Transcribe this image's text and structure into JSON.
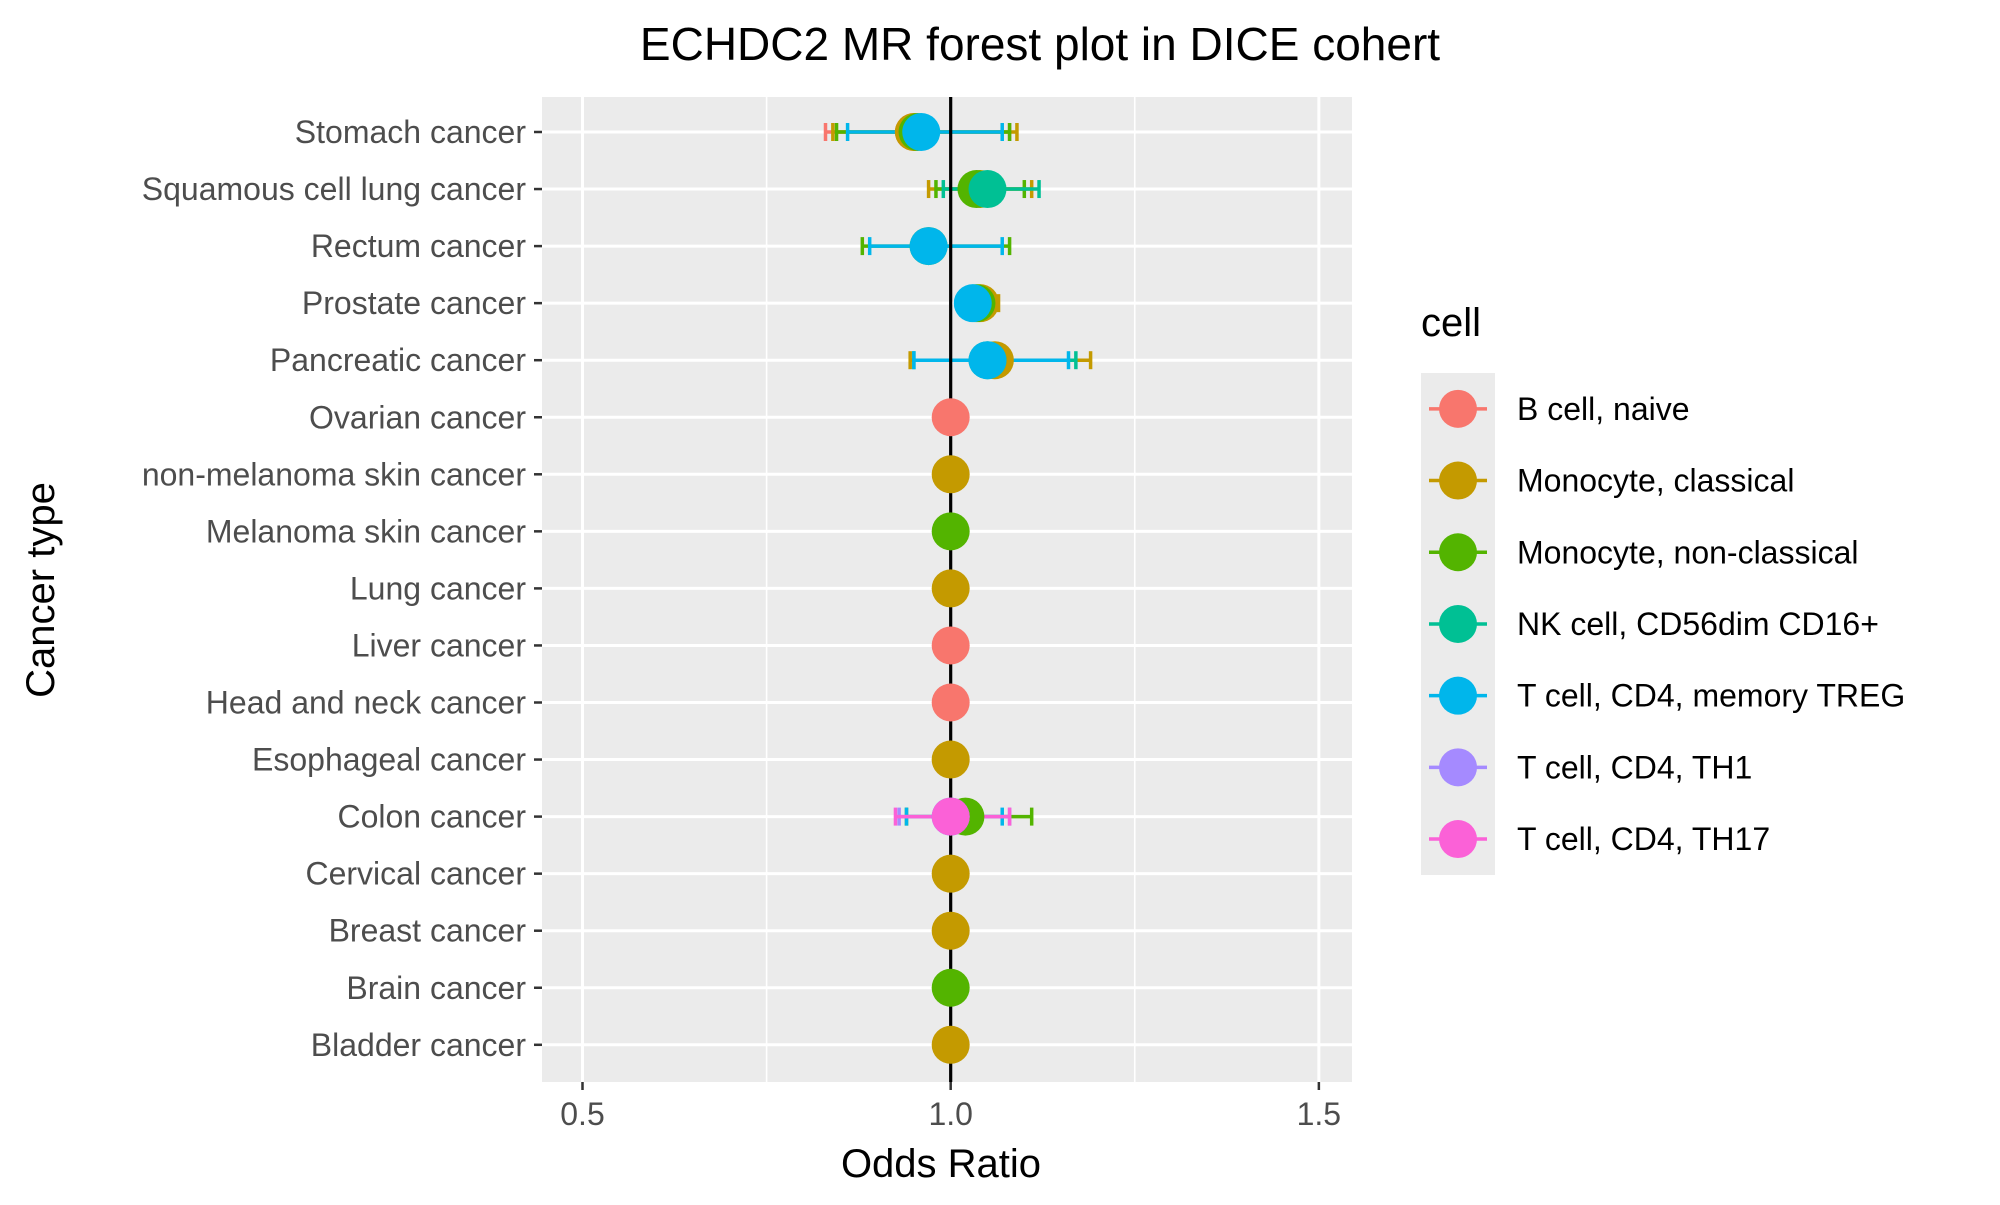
{
  "chart_data": {
    "type": "scatter",
    "subtype": "forest",
    "title": "ECHDC2 MR forest plot in DICE cohert",
    "xlabel": "Odds Ratio",
    "ylabel": "Cancer type",
    "xlim": [
      0.445,
      1.545
    ],
    "xticks": [
      {
        "value": 0.5,
        "label": "0.5"
      },
      {
        "value": 1.0,
        "label": "1.0"
      },
      {
        "value": 1.5,
        "label": "1.5"
      }
    ],
    "reference_line": 1.0,
    "grid": true,
    "legend_position": "right",
    "legend_title": "cell",
    "categories": [
      "Stomach cancer",
      "Squamous cell lung cancer",
      "Rectum cancer",
      "Prostate cancer",
      "Pancreatic cancer",
      "Ovarian cancer",
      "non-melanoma skin cancer",
      "Melanoma skin cancer",
      "Lung cancer",
      "Liver cancer",
      "Head and neck cancer",
      "Esophageal cancer",
      "Colon cancer",
      "Cervical cancer",
      "Breast cancer",
      "Brain cancer",
      "Bladder cancer"
    ],
    "series": [
      {
        "name": "B cell, naive",
        "color": "#F8766D",
        "points": [
          {
            "category": "Stomach cancer",
            "or": 0.95,
            "lo": 0.83,
            "hi": 1.08
          },
          {
            "category": "Ovarian cancer",
            "or": 1.0,
            "lo": 1.0,
            "hi": 1.0
          },
          {
            "category": "Liver cancer",
            "or": 1.0,
            "lo": 1.0,
            "hi": 1.0
          },
          {
            "category": "Head and neck cancer",
            "or": 1.0,
            "lo": 1.0,
            "hi": 1.0
          }
        ]
      },
      {
        "name": "Monocyte, classical",
        "color": "#C49A00",
        "points": [
          {
            "category": "Stomach cancer",
            "or": 0.95,
            "lo": 0.84,
            "hi": 1.09
          },
          {
            "category": "Squamous cell lung cancer",
            "or": 1.04,
            "lo": 0.97,
            "hi": 1.11
          },
          {
            "category": "Prostate cancer",
            "or": 1.04,
            "lo": 1.02,
            "hi": 1.065
          },
          {
            "category": "Pancreatic cancer",
            "or": 1.06,
            "lo": 0.945,
            "hi": 1.19
          },
          {
            "category": "non-melanoma skin cancer",
            "or": 1.0,
            "lo": 1.0,
            "hi": 1.0
          },
          {
            "category": "Lung cancer",
            "or": 1.0,
            "lo": 1.0,
            "hi": 1.0
          },
          {
            "category": "Esophageal cancer",
            "or": 1.0,
            "lo": 1.0,
            "hi": 1.0
          },
          {
            "category": "Cervical cancer",
            "or": 1.0,
            "lo": 1.0,
            "hi": 1.0
          },
          {
            "category": "Breast cancer",
            "or": 1.0,
            "lo": 1.0,
            "hi": 1.0
          },
          {
            "category": "Bladder cancer",
            "or": 1.0,
            "lo": 1.0,
            "hi": 1.0
          }
        ]
      },
      {
        "name": "Monocyte, non-classical",
        "color": "#53B400",
        "points": [
          {
            "category": "Stomach cancer",
            "or": 0.955,
            "lo": 0.845,
            "hi": 1.08
          },
          {
            "category": "Squamous cell lung cancer",
            "or": 1.035,
            "lo": 0.98,
            "hi": 1.1
          },
          {
            "category": "Rectum cancer",
            "or": 0.97,
            "lo": 0.88,
            "hi": 1.08
          },
          {
            "category": "Prostate cancer",
            "or": 1.035,
            "lo": 1.025,
            "hi": 1.055
          },
          {
            "category": "Melanoma skin cancer",
            "or": 1.0,
            "lo": 1.0,
            "hi": 1.0
          },
          {
            "category": "Colon cancer",
            "or": 1.02,
            "lo": 0.94,
            "hi": 1.11
          },
          {
            "category": "Brain cancer",
            "or": 1.0,
            "lo": 1.0,
            "hi": 1.0
          }
        ]
      },
      {
        "name": "NK cell, CD56dim CD16+",
        "color": "#00C094",
        "points": [
          {
            "category": "Squamous cell lung cancer",
            "or": 1.05,
            "lo": 0.99,
            "hi": 1.12
          },
          {
            "category": "Pancreatic cancer",
            "or": 1.05,
            "lo": 0.95,
            "hi": 1.17
          }
        ]
      },
      {
        "name": "T cell, CD4, memory TREG",
        "color": "#00B6EB",
        "points": [
          {
            "category": "Stomach cancer",
            "or": 0.96,
            "lo": 0.86,
            "hi": 1.07
          },
          {
            "category": "Rectum cancer",
            "or": 0.97,
            "lo": 0.89,
            "hi": 1.07
          },
          {
            "category": "Prostate cancer",
            "or": 1.03,
            "lo": 1.02,
            "hi": 1.05
          },
          {
            "category": "Pancreatic cancer",
            "or": 1.05,
            "lo": 0.95,
            "hi": 1.16
          },
          {
            "category": "Colon cancer",
            "or": 1.0,
            "lo": 0.94,
            "hi": 1.07
          }
        ]
      },
      {
        "name": "T cell, CD4, TH1",
        "color": "#A58AFF",
        "points": [
          {
            "category": "Colon cancer",
            "or": 1.0,
            "lo": 0.93,
            "hi": 1.08
          }
        ]
      },
      {
        "name": "T cell, CD4, TH17",
        "color": "#FB61D7",
        "points": [
          {
            "category": "Colon cancer",
            "or": 1.0,
            "lo": 0.925,
            "hi": 1.08
          }
        ]
      }
    ]
  }
}
